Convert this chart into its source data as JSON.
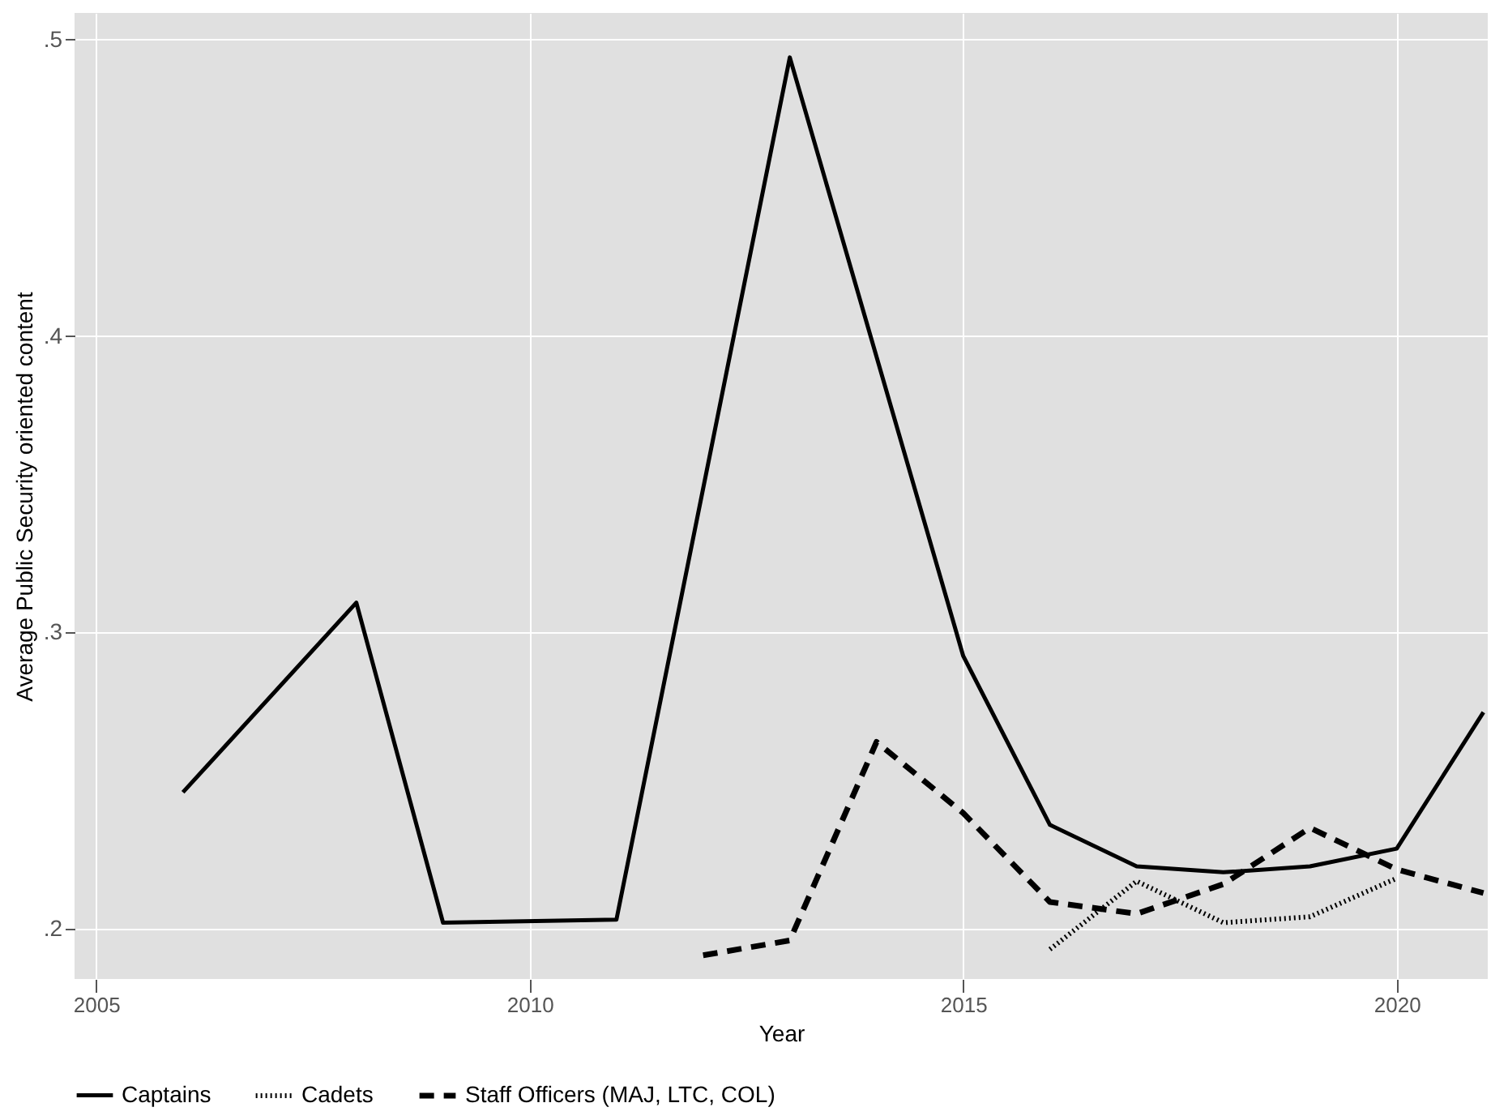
{
  "chart_data": {
    "type": "line",
    "xlabel": "Year",
    "ylabel": "Average Public Security oriented content",
    "xlim": [
      2004.75,
      2021.05
    ],
    "ylim": [
      0.183,
      0.509
    ],
    "xticks": [
      2005,
      2010,
      2015,
      2020
    ],
    "yticks": [
      {
        "value": 0.2,
        "label": ".2"
      },
      {
        "value": 0.3,
        "label": ".3"
      },
      {
        "value": 0.4,
        "label": ".4"
      },
      {
        "value": 0.5,
        "label": ".5"
      }
    ],
    "grid": true,
    "legend": "bottom",
    "marker": "none",
    "series": [
      {
        "name": "Captains",
        "color": "#000000",
        "line_style": "solid",
        "x": [
          2006,
          2008,
          2009,
          2011,
          2013,
          2015,
          2016,
          2017,
          2018,
          2019,
          2020,
          2021
        ],
        "values": [
          0.246,
          0.31,
          0.202,
          0.203,
          0.494,
          0.292,
          0.235,
          0.221,
          0.219,
          0.221,
          0.227,
          0.273
        ]
      },
      {
        "name": "Cadets",
        "color": "#000000",
        "line_style": "dotted",
        "x": [
          2016,
          2017,
          2018,
          2019,
          2020
        ],
        "values": [
          0.193,
          0.216,
          0.202,
          0.204,
          0.217
        ]
      },
      {
        "name": "Staff Officers (MAJ, LTC, COL)",
        "color": "#000000",
        "line_style": "dashed",
        "x": [
          2012,
          2013,
          2014,
          2015,
          2016,
          2017,
          2018,
          2019,
          2020,
          2021
        ],
        "values": [
          0.191,
          0.196,
          0.263,
          0.239,
          0.209,
          0.205,
          0.215,
          0.234,
          0.22,
          0.212
        ]
      }
    ]
  }
}
